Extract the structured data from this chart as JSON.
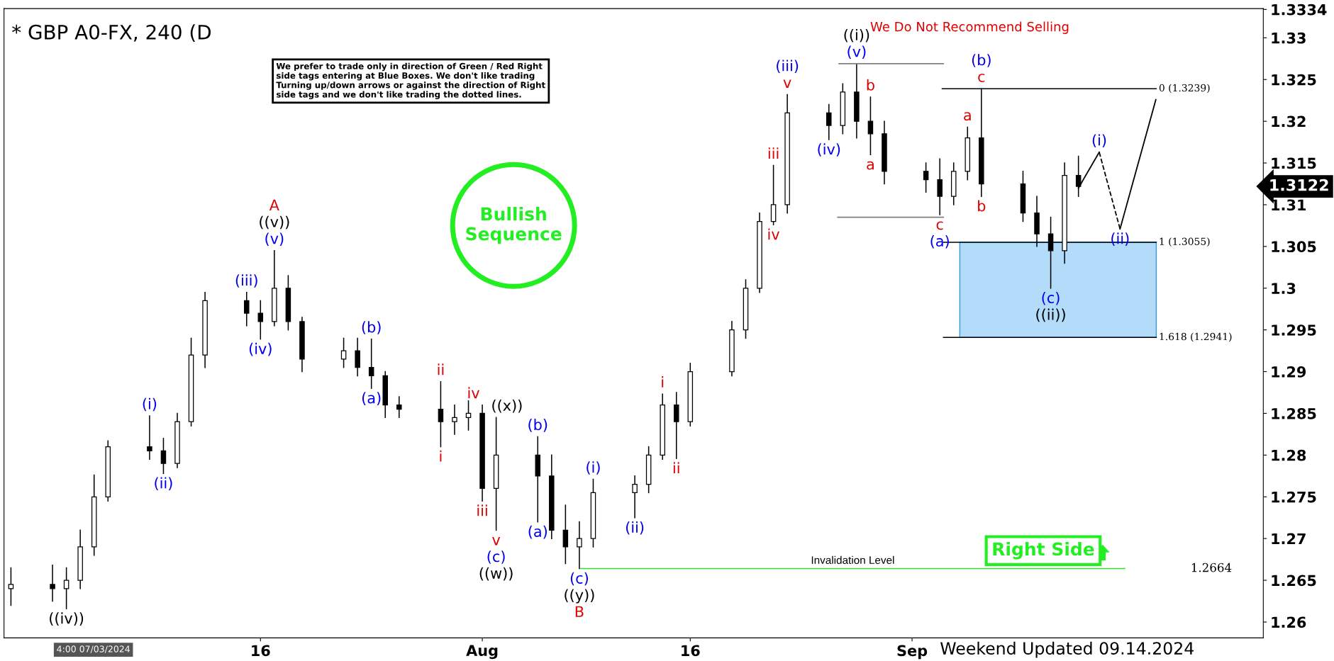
{
  "chart_data": {
    "type": "candlestick",
    "title": "* GBP A0-FX, 240 (D",
    "color": "#000000",
    "x": [
      "2024-06-28",
      "2024-07-01",
      "2024-07-02",
      "2024-07-03",
      "2024-07-04",
      "2024-07-05",
      "2024-07-08",
      "2024-07-09",
      "2024-07-10",
      "2024-07-11",
      "2024-07-12",
      "2024-07-15",
      "2024-07-16",
      "2024-07-17",
      "2024-07-18",
      "2024-07-19",
      "2024-07-22",
      "2024-07-23",
      "2024-07-24",
      "2024-07-25",
      "2024-07-26",
      "2024-07-29",
      "2024-07-30",
      "2024-07-31",
      "2024-08-01",
      "2024-08-02",
      "2024-08-05",
      "2024-08-06",
      "2024-08-07",
      "2024-08-08",
      "2024-08-09",
      "2024-08-12",
      "2024-08-13",
      "2024-08-14",
      "2024-08-15",
      "2024-08-16",
      "2024-08-19",
      "2024-08-20",
      "2024-08-21",
      "2024-08-22",
      "2024-08-23",
      "2024-08-26",
      "2024-08-27",
      "2024-08-28",
      "2024-08-29",
      "2024-08-30",
      "2024-09-02",
      "2024-09-03",
      "2024-09-04",
      "2024-09-05",
      "2024-09-06",
      "2024-09-09",
      "2024-09-10",
      "2024-09-11",
      "2024-09-12",
      "2024-09-13"
    ],
    "ohlc": [
      [
        1.264,
        1.2665,
        1.262,
        1.2645
      ],
      [
        1.2645,
        1.2668,
        1.2625,
        1.264
      ],
      [
        1.264,
        1.2665,
        1.2616,
        1.265
      ],
      [
        1.265,
        1.271,
        1.264,
        1.269
      ],
      [
        1.269,
        1.2776,
        1.268,
        1.275
      ],
      [
        1.275,
        1.2817,
        1.2745,
        1.281
      ],
      [
        1.281,
        1.2847,
        1.2795,
        1.2805
      ],
      [
        1.2805,
        1.282,
        1.2778,
        1.279
      ],
      [
        1.279,
        1.285,
        1.2785,
        1.284
      ],
      [
        1.284,
        1.294,
        1.2835,
        1.292
      ],
      [
        1.292,
        1.2995,
        1.2905,
        1.2985
      ],
      [
        1.2985,
        1.2995,
        1.2955,
        1.297
      ],
      [
        1.297,
        1.2985,
        1.2939,
        1.296
      ],
      [
        1.296,
        1.3045,
        1.2955,
        1.3
      ],
      [
        1.3,
        1.3015,
        1.295,
        1.296
      ],
      [
        1.296,
        1.2965,
        1.29,
        1.2915
      ],
      [
        1.2915,
        1.294,
        1.2905,
        1.2925
      ],
      [
        1.2925,
        1.294,
        1.2895,
        1.2905
      ],
      [
        1.2905,
        1.2939,
        1.288,
        1.2895
      ],
      [
        1.2895,
        1.29,
        1.2845,
        1.286
      ],
      [
        1.286,
        1.287,
        1.2845,
        1.2855
      ],
      [
        1.2855,
        1.2888,
        1.281,
        1.284
      ],
      [
        1.284,
        1.286,
        1.2825,
        1.2845
      ],
      [
        1.2845,
        1.2865,
        1.283,
        1.285
      ],
      [
        1.285,
        1.286,
        1.2745,
        1.276
      ],
      [
        1.276,
        1.2845,
        1.271,
        1.28
      ],
      [
        1.28,
        1.2822,
        1.272,
        1.2775
      ],
      [
        1.2775,
        1.28,
        1.27,
        1.271
      ],
      [
        1.271,
        1.274,
        1.267,
        1.269
      ],
      [
        1.269,
        1.272,
        1.2664,
        1.27
      ],
      [
        1.27,
        1.2771,
        1.269,
        1.2755
      ],
      [
        1.2755,
        1.2775,
        1.2725,
        1.2765
      ],
      [
        1.2765,
        1.281,
        1.2755,
        1.28
      ],
      [
        1.28,
        1.2873,
        1.2795,
        1.286
      ],
      [
        1.286,
        1.2875,
        1.2796,
        1.284
      ],
      [
        1.284,
        1.291,
        1.2835,
        1.29
      ],
      [
        1.29,
        1.296,
        1.2895,
        1.295
      ],
      [
        1.295,
        1.301,
        1.294,
        1.3
      ],
      [
        1.3,
        1.309,
        1.2995,
        1.308
      ],
      [
        1.308,
        1.3147,
        1.3076,
        1.31
      ],
      [
        1.31,
        1.3232,
        1.309,
        1.321
      ],
      [
        1.321,
        1.322,
        1.3178,
        1.3195
      ],
      [
        1.3195,
        1.3245,
        1.3185,
        1.3235
      ],
      [
        1.3235,
        1.3269,
        1.318,
        1.32
      ],
      [
        1.32,
        1.3229,
        1.316,
        1.3185
      ],
      [
        1.3185,
        1.32,
        1.3125,
        1.314
      ],
      [
        1.314,
        1.315,
        1.3115,
        1.313
      ],
      [
        1.313,
        1.3155,
        1.3088,
        1.311
      ],
      [
        1.311,
        1.315,
        1.31,
        1.314
      ],
      [
        1.314,
        1.3193,
        1.313,
        1.318
      ],
      [
        1.318,
        1.3239,
        1.311,
        1.3125
      ],
      [
        1.3125,
        1.314,
        1.308,
        1.309
      ],
      [
        1.309,
        1.311,
        1.305,
        1.3065
      ],
      [
        1.3065,
        1.3085,
        1.3,
        1.3045
      ],
      [
        1.3045,
        1.315,
        1.303,
        1.3135
      ],
      [
        1.3135,
        1.3158,
        1.311,
        1.3122
      ]
    ],
    "series": [
      {
        "type": "line",
        "color": "#000000",
        "line_style": "solid",
        "x": [
          "2024-09-13",
          "2024-09-14T12:00"
        ],
        "values": [
          1.312,
          1.3163
        ]
      },
      {
        "type": "line",
        "color": "#000000",
        "line_style": "dashed",
        "x": [
          "2024-09-14T12:00",
          "2024-09-16"
        ],
        "values": [
          1.3163,
          1.3071
        ]
      },
      {
        "type": "line",
        "color": "#000000",
        "line_style": "solid",
        "x": [
          "2024-09-16",
          "2024-09-18T14:00"
        ],
        "values": [
          1.3071,
          1.3226
        ]
      }
    ],
    "xlim": [
      "2024-06-27T12:00",
      "2024-09-26T08:00"
    ],
    "xticks": [
      {
        "value": "2024-07-16",
        "label": "16"
      },
      {
        "value": "2024-08-01",
        "label": "Aug"
      },
      {
        "value": "2024-08-16",
        "label": "16"
      },
      {
        "value": "2024-09-01",
        "label": "Sep"
      }
    ],
    "ylim": [
      1.2581,
      1.3335
    ],
    "yticks": [
      1.26,
      1.265,
      1.27,
      1.275,
      1.28,
      1.285,
      1.29,
      1.295,
      1.3,
      1.305,
      1.31,
      1.315,
      1.32,
      1.325,
      1.33,
      {
        "value": 1.3334,
        "label": "1.3334"
      }
    ],
    "ref_lines": [
      {
        "axis": "y",
        "value": 1.3269,
        "color": "#808080"
      },
      {
        "axis": "y",
        "value": 1.3239,
        "label": "0 (1.3239)",
        "color": "#000000"
      },
      {
        "axis": "y",
        "value": 1.3085,
        "color": "#808080"
      },
      {
        "axis": "y",
        "value": 1.3055,
        "label": "1 (1.3055)",
        "color": "#000000"
      },
      {
        "axis": "y",
        "value": 1.2941,
        "label": "1.618 (1.2941)",
        "color": "#000000"
      },
      {
        "axis": "y",
        "value": 1.2664,
        "label": "Invalidation Level",
        "color": "#33dd33"
      }
    ],
    "bands": [
      {
        "axis": "y",
        "from": 1.2941,
        "to": 1.3055,
        "color": "#b3dcfa"
      }
    ],
    "annotations": [
      "We prefer to trade only in direction of Green / Red Right\nside tags entering at Blue Boxes. We don't like trading\nTurning up/down arrows or against the direction of Right\nside tags and we don't like trading the dotted lines.",
      "We Do Not Recommend Selling",
      "Bullish\nSequence",
      "Right Side",
      "Weekend Updated 09.14.2024",
      "4:00 07/03/2024",
      "1.3122",
      "1.2664",
      {
        "text": "((iv))",
        "x": "2024-07-02",
        "y": 1.2616
      },
      {
        "text": "(i)",
        "x": "2024-07-08",
        "y": 1.2847
      },
      {
        "text": "(ii)",
        "x": "2024-07-09",
        "y": 1.2778
      },
      {
        "text": "(iii)",
        "x": "2024-07-15",
        "y": 1.2995
      },
      {
        "text": "(iv)",
        "x": "2024-07-16",
        "y": 1.2939
      },
      {
        "text": "(v)",
        "x": "2024-07-17",
        "y": 1.3045
      },
      {
        "text": "((v))",
        "x": "2024-07-17",
        "y": 1.3045
      },
      {
        "text": "A",
        "x": "2024-07-17",
        "y": 1.3045
      },
      {
        "text": "(b)",
        "x": "2024-07-24",
        "y": 1.2939
      },
      {
        "text": "(a)",
        "x": "2024-07-24",
        "y": 1.288
      },
      {
        "text": "ii",
        "x": "2024-07-29",
        "y": 1.2888
      },
      {
        "text": "i",
        "x": "2024-07-29",
        "y": 1.281
      },
      {
        "text": "iv",
        "x": "2024-08-01",
        "y": 1.286
      },
      {
        "text": "((x))",
        "x": "2024-08-02",
        "y": 1.2845
      },
      {
        "text": "iii",
        "x": "2024-08-01",
        "y": 1.2745
      },
      {
        "text": "v",
        "x": "2024-08-02",
        "y": 1.271
      },
      {
        "text": "(c)",
        "x": "2024-08-02",
        "y": 1.271
      },
      {
        "text": "((w))",
        "x": "2024-08-02",
        "y": 1.271
      },
      {
        "text": "(b)",
        "x": "2024-08-05",
        "y": 1.2822
      },
      {
        "text": "(a)",
        "x": "2024-08-05",
        "y": 1.272
      },
      {
        "text": "(i)",
        "x": "2024-08-09",
        "y": 1.2771
      },
      {
        "text": "(ii)",
        "x": "2024-08-12",
        "y": 1.2725
      },
      {
        "text": "(c)",
        "x": "2024-08-08",
        "y": 1.2664
      },
      {
        "text": "((y))",
        "x": "2024-08-08",
        "y": 1.2664
      },
      {
        "text": "B",
        "x": "2024-08-08",
        "y": 1.2664
      },
      {
        "text": "i",
        "x": "2024-08-14",
        "y": 1.2873
      },
      {
        "text": "ii",
        "x": "2024-08-15",
        "y": 1.2796
      },
      {
        "text": "iii",
        "x": "2024-08-22",
        "y": 1.3147
      },
      {
        "text": "iv",
        "x": "2024-08-22",
        "y": 1.3076
      },
      {
        "text": "v",
        "x": "2024-08-23",
        "y": 1.3232
      },
      {
        "text": "(iii)",
        "x": "2024-08-23",
        "y": 1.3232
      },
      {
        "text": "(iv)",
        "x": "2024-08-26",
        "y": 1.3178
      },
      {
        "text": "(v)",
        "x": "2024-08-28",
        "y": 1.3269
      },
      {
        "text": "((i))",
        "x": "2024-08-28",
        "y": 1.3269
      },
      {
        "text": "b",
        "x": "2024-08-29",
        "y": 1.3229
      },
      {
        "text": "a",
        "x": "2024-08-29",
        "y": 1.316
      },
      {
        "text": "c",
        "x": "2024-09-03",
        "y": 1.3088
      },
      {
        "text": "(a)",
        "x": "2024-09-03",
        "y": 1.3088
      },
      {
        "text": "c",
        "x": "2024-09-06",
        "y": 1.3239
      },
      {
        "text": "(b)",
        "x": "2024-09-06",
        "y": 1.3239
      },
      {
        "text": "a",
        "x": "2024-09-05",
        "y": 1.3193
      },
      {
        "text": "b",
        "x": "2024-09-06",
        "y": 1.311
      },
      {
        "text": "(c)",
        "x": "2024-09-11",
        "y": 1.3
      },
      {
        "text": "((ii))",
        "x": "2024-09-11",
        "y": 1.3
      },
      {
        "text": "(i)",
        "x": "2024-09-14T12:00",
        "y": 1.3163
      },
      {
        "text": "(ii)",
        "x": "2024-09-16",
        "y": 1.3071
      }
    ]
  }
}
